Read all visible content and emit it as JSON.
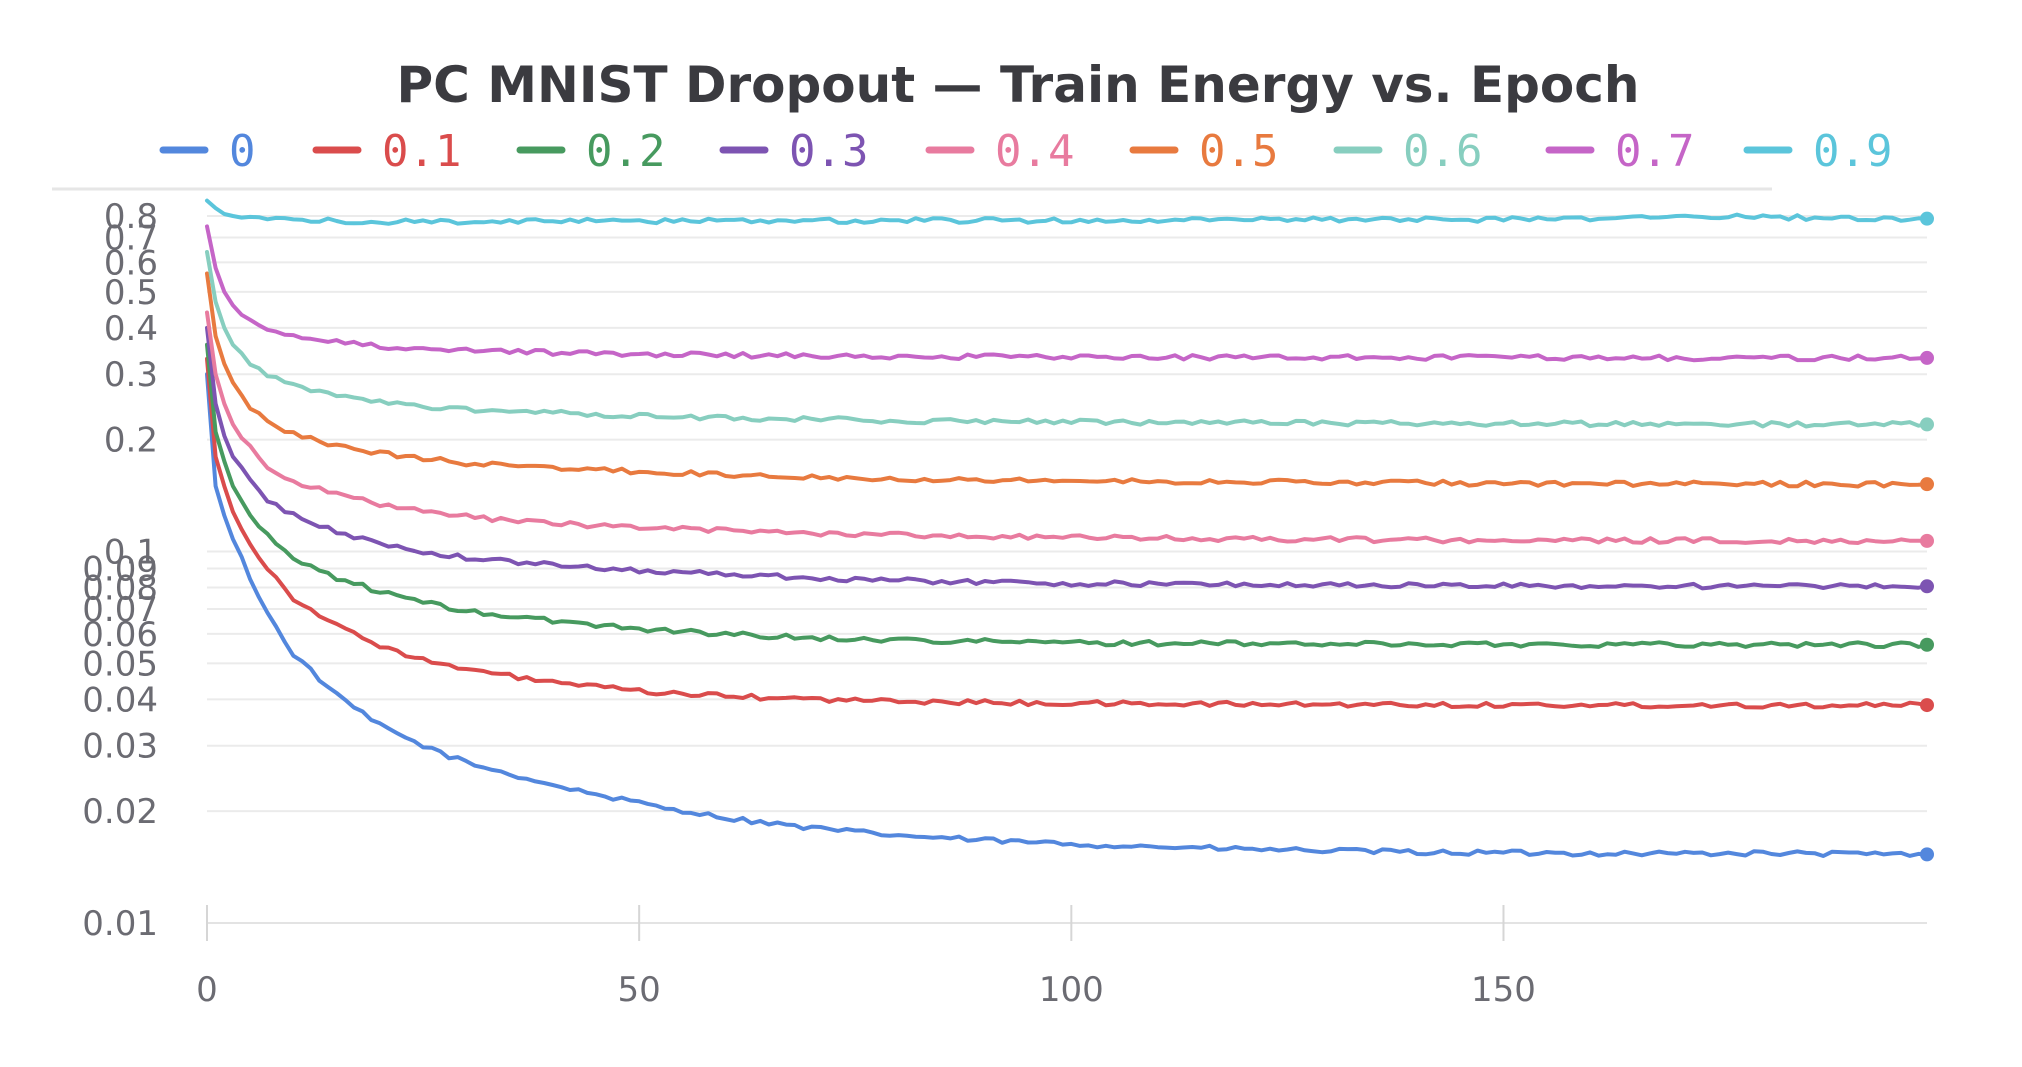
{
  "chart_data": {
    "type": "line",
    "title": "PC MNIST Dropout — Train Energy vs. Epoch",
    "xlabel": "",
    "ylabel": "",
    "x_scale": "linear",
    "y_scale": "log",
    "xlim": [
      0,
      199
    ],
    "ylim": [
      0.0095,
      0.9
    ],
    "x_ticks": [
      "0",
      "50",
      "100",
      "150"
    ],
    "y_ticks": [
      "0.8",
      "0.7",
      "0.6",
      "0.5",
      "0.4",
      "0.3",
      "0.2",
      "0.1",
      "0.09",
      "0.08",
      "0.07",
      "0.06",
      "0.05",
      "0.04",
      "0.03",
      "0.02",
      "0.01"
    ],
    "grid": true,
    "legend_position": "top",
    "series": [
      {
        "name": "0",
        "color": "#5387dd",
        "points": [
          [
            0,
            0.3
          ],
          [
            1,
            0.15
          ],
          [
            2,
            0.125
          ],
          [
            3,
            0.108
          ],
          [
            5,
            0.085
          ],
          [
            7,
            0.068
          ],
          [
            10,
            0.053
          ],
          [
            15,
            0.041
          ],
          [
            20,
            0.034
          ],
          [
            25,
            0.03
          ],
          [
            30,
            0.027
          ],
          [
            40,
            0.0235
          ],
          [
            50,
            0.021
          ],
          [
            60,
            0.0192
          ],
          [
            70,
            0.018
          ],
          [
            80,
            0.0172
          ],
          [
            90,
            0.0167
          ],
          [
            100,
            0.0163
          ],
          [
            120,
            0.0158
          ],
          [
            140,
            0.0155
          ],
          [
            160,
            0.0154
          ],
          [
            180,
            0.0154
          ],
          [
            199,
            0.0153
          ]
        ]
      },
      {
        "name": "0.1",
        "color": "#da4c4c",
        "points": [
          [
            0,
            0.33
          ],
          [
            1,
            0.18
          ],
          [
            2,
            0.15
          ],
          [
            3,
            0.128
          ],
          [
            5,
            0.105
          ],
          [
            7,
            0.09
          ],
          [
            10,
            0.075
          ],
          [
            15,
            0.063
          ],
          [
            20,
            0.056
          ],
          [
            25,
            0.051
          ],
          [
            30,
            0.048
          ],
          [
            40,
            0.0445
          ],
          [
            50,
            0.042
          ],
          [
            60,
            0.0408
          ],
          [
            70,
            0.04
          ],
          [
            80,
            0.0395
          ],
          [
            100,
            0.039
          ],
          [
            120,
            0.0388
          ],
          [
            140,
            0.0387
          ],
          [
            160,
            0.0386
          ],
          [
            180,
            0.0386
          ],
          [
            199,
            0.0386
          ]
        ]
      },
      {
        "name": "0.2",
        "color": "#479a5f",
        "points": [
          [
            0,
            0.36
          ],
          [
            1,
            0.21
          ],
          [
            2,
            0.175
          ],
          [
            3,
            0.15
          ],
          [
            5,
            0.125
          ],
          [
            7,
            0.11
          ],
          [
            10,
            0.096
          ],
          [
            15,
            0.085
          ],
          [
            20,
            0.078
          ],
          [
            25,
            0.073
          ],
          [
            30,
            0.069
          ],
          [
            40,
            0.065
          ],
          [
            50,
            0.062
          ],
          [
            60,
            0.06
          ],
          [
            70,
            0.0585
          ],
          [
            80,
            0.0578
          ],
          [
            100,
            0.0568
          ],
          [
            120,
            0.0565
          ],
          [
            140,
            0.0563
          ],
          [
            160,
            0.0562
          ],
          [
            180,
            0.0562
          ],
          [
            199,
            0.0561
          ]
        ]
      },
      {
        "name": "0.3",
        "color": "#7d54b2",
        "points": [
          [
            0,
            0.4
          ],
          [
            1,
            0.25
          ],
          [
            2,
            0.205
          ],
          [
            3,
            0.18
          ],
          [
            5,
            0.155
          ],
          [
            7,
            0.138
          ],
          [
            10,
            0.125
          ],
          [
            15,
            0.113
          ],
          [
            20,
            0.105
          ],
          [
            25,
            0.1
          ],
          [
            30,
            0.096
          ],
          [
            40,
            0.092
          ],
          [
            50,
            0.089
          ],
          [
            60,
            0.087
          ],
          [
            70,
            0.085
          ],
          [
            80,
            0.0835
          ],
          [
            100,
            0.082
          ],
          [
            120,
            0.0815
          ],
          [
            140,
            0.081
          ],
          [
            160,
            0.0808
          ],
          [
            180,
            0.0806
          ],
          [
            199,
            0.0806
          ]
        ]
      },
      {
        "name": "0.4",
        "color": "#e87b9f",
        "points": [
          [
            0,
            0.44
          ],
          [
            1,
            0.3
          ],
          [
            2,
            0.25
          ],
          [
            3,
            0.22
          ],
          [
            5,
            0.19
          ],
          [
            7,
            0.17
          ],
          [
            10,
            0.155
          ],
          [
            15,
            0.142
          ],
          [
            20,
            0.134
          ],
          [
            25,
            0.128
          ],
          [
            30,
            0.124
          ],
          [
            40,
            0.119
          ],
          [
            50,
            0.116
          ],
          [
            60,
            0.114
          ],
          [
            70,
            0.112
          ],
          [
            80,
            0.111
          ],
          [
            100,
            0.109
          ],
          [
            120,
            0.108
          ],
          [
            140,
            0.1075
          ],
          [
            160,
            0.107
          ],
          [
            180,
            0.107
          ],
          [
            199,
            0.1068
          ]
        ]
      },
      {
        "name": "0.5",
        "color": "#e87a3f",
        "points": [
          [
            0,
            0.56
          ],
          [
            1,
            0.38
          ],
          [
            2,
            0.32
          ],
          [
            3,
            0.285
          ],
          [
            5,
            0.245
          ],
          [
            7,
            0.225
          ],
          [
            10,
            0.207
          ],
          [
            15,
            0.193
          ],
          [
            20,
            0.184
          ],
          [
            25,
            0.178
          ],
          [
            30,
            0.173
          ],
          [
            40,
            0.168
          ],
          [
            50,
            0.164
          ],
          [
            60,
            0.161
          ],
          [
            70,
            0.159
          ],
          [
            80,
            0.157
          ],
          [
            100,
            0.155
          ],
          [
            120,
            0.154
          ],
          [
            140,
            0.153
          ],
          [
            160,
            0.152
          ],
          [
            180,
            0.152
          ],
          [
            199,
            0.1518
          ]
        ]
      },
      {
        "name": "0.6",
        "color": "#87cebf",
        "points": [
          [
            0,
            0.64
          ],
          [
            1,
            0.47
          ],
          [
            2,
            0.4
          ],
          [
            3,
            0.36
          ],
          [
            5,
            0.32
          ],
          [
            7,
            0.297
          ],
          [
            10,
            0.279
          ],
          [
            15,
            0.263
          ],
          [
            20,
            0.253
          ],
          [
            25,
            0.246
          ],
          [
            30,
            0.241
          ],
          [
            40,
            0.236
          ],
          [
            50,
            0.232
          ],
          [
            60,
            0.229
          ],
          [
            70,
            0.227
          ],
          [
            80,
            0.225
          ],
          [
            100,
            0.223
          ],
          [
            120,
            0.222
          ],
          [
            140,
            0.221
          ],
          [
            160,
            0.2205
          ],
          [
            180,
            0.22
          ],
          [
            199,
            0.2198
          ]
        ]
      },
      {
        "name": "0.7",
        "color": "#c565c7",
        "points": [
          [
            0,
            0.75
          ],
          [
            1,
            0.58
          ],
          [
            2,
            0.5
          ],
          [
            3,
            0.46
          ],
          [
            5,
            0.42
          ],
          [
            7,
            0.397
          ],
          [
            10,
            0.38
          ],
          [
            15,
            0.366
          ],
          [
            20,
            0.357
          ],
          [
            25,
            0.352
          ],
          [
            30,
            0.348
          ],
          [
            40,
            0.343
          ],
          [
            50,
            0.34
          ],
          [
            60,
            0.338
          ],
          [
            70,
            0.336
          ],
          [
            80,
            0.335
          ],
          [
            100,
            0.334
          ],
          [
            120,
            0.333
          ],
          [
            140,
            0.333
          ],
          [
            160,
            0.3325
          ],
          [
            180,
            0.332
          ],
          [
            199,
            0.332
          ]
        ]
      },
      {
        "name": "0.9",
        "color": "#5bc5db",
        "points": [
          [
            0,
            0.88
          ],
          [
            1,
            0.84
          ],
          [
            2,
            0.81
          ],
          [
            3,
            0.8
          ],
          [
            5,
            0.79
          ],
          [
            7,
            0.785
          ],
          [
            10,
            0.78
          ],
          [
            15,
            0.775
          ],
          [
            20,
            0.773
          ],
          [
            30,
            0.774
          ],
          [
            50,
            0.776
          ],
          [
            80,
            0.778
          ],
          [
            100,
            0.779
          ],
          [
            130,
            0.782
          ],
          [
            150,
            0.783
          ],
          [
            165,
            0.786
          ],
          [
            170,
            0.795
          ],
          [
            175,
            0.8
          ],
          [
            180,
            0.795
          ],
          [
            190,
            0.788
          ],
          [
            199,
            0.787
          ]
        ]
      }
    ]
  }
}
